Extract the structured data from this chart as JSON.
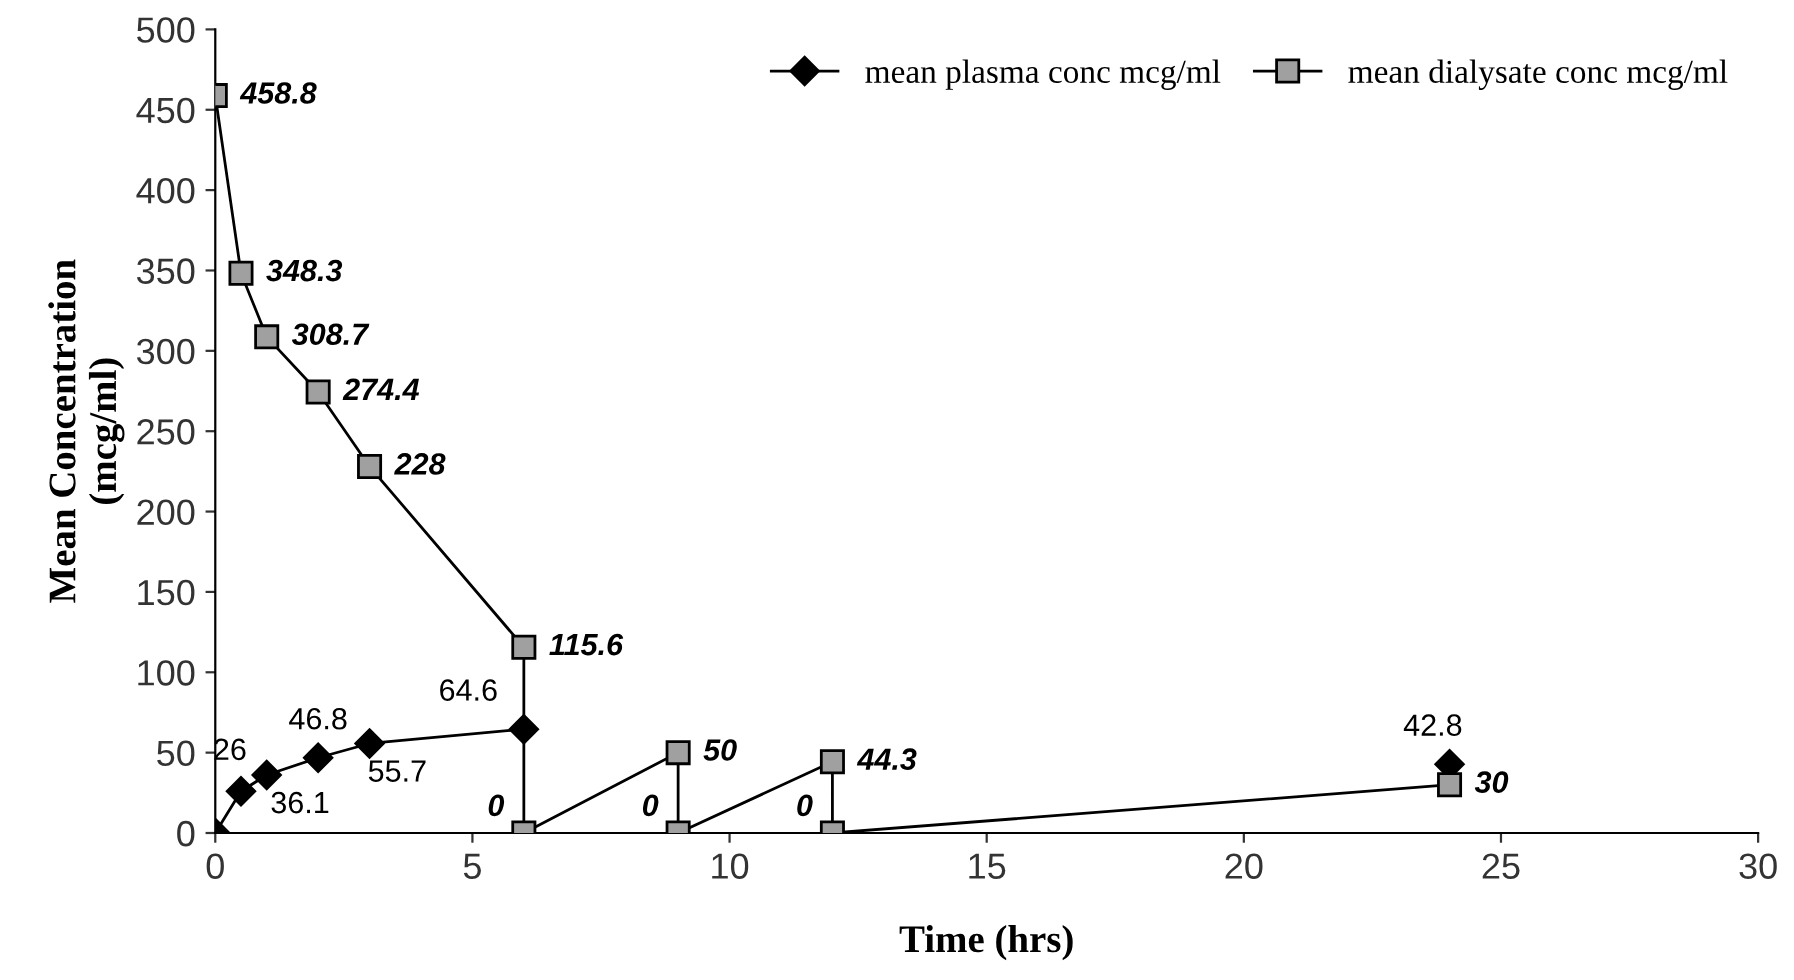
{
  "chart_data": {
    "type": "line",
    "xlabel": "Time (hrs)",
    "ylabel": "Mean Concentration\n(mcg/ml)",
    "xlim": [
      0,
      30
    ],
    "xticks": [
      0,
      5,
      10,
      15,
      20,
      25,
      30
    ],
    "ylim": [
      0,
      500
    ],
    "yticks": [
      0,
      50,
      100,
      150,
      200,
      250,
      300,
      350,
      400,
      450,
      500
    ],
    "grid": false,
    "legend": "top right",
    "series": [
      {
        "name": "mean plasma conc mcg/ml",
        "color": "#000000",
        "marker": "diamond",
        "x": [
          0,
          0.5,
          1,
          2,
          3,
          6,
          9,
          24
        ],
        "values": [
          0,
          26,
          36.1,
          46.8,
          55.7,
          64.6,
          null,
          42.8
        ],
        "value_labels": [
          null,
          "26",
          "36.1",
          "46.8",
          "55.7",
          "64.6",
          null,
          "42.8"
        ]
      },
      {
        "name": "mean dialysate conc mcg/ml",
        "color": "#a0a0a0",
        "marker": "square",
        "x": [
          0,
          0.5,
          1,
          2,
          3,
          6,
          6,
          9,
          9,
          12,
          12,
          24
        ],
        "values": [
          458.8,
          348.3,
          308.7,
          274.4,
          228,
          115.6,
          0,
          50,
          0,
          44.3,
          0,
          30
        ],
        "value_labels": [
          "458.8",
          "348.3",
          "308.7",
          "274.4",
          "228",
          "115.6",
          "0",
          "50",
          "0",
          "44.3",
          "0",
          "30"
        ]
      }
    ]
  }
}
